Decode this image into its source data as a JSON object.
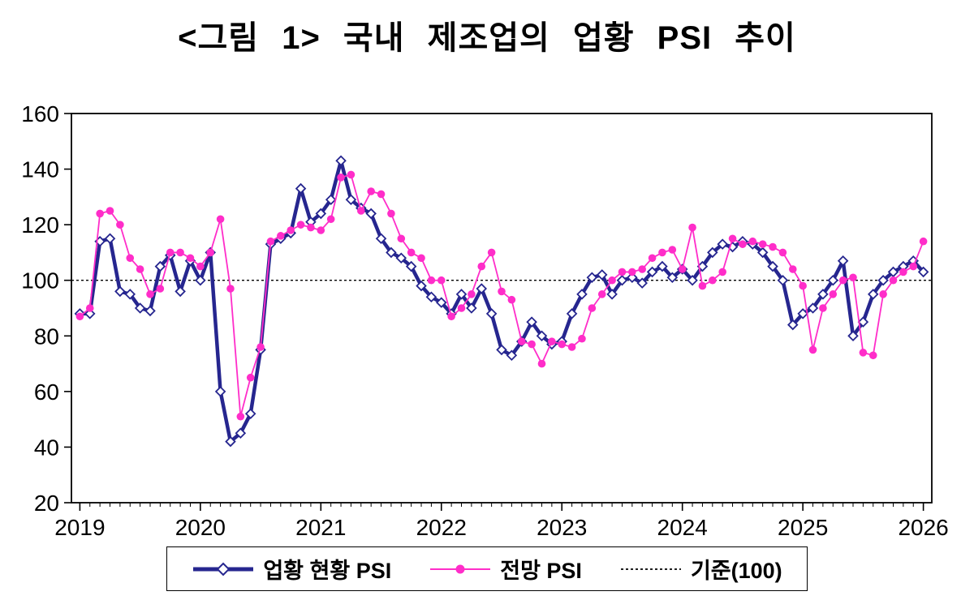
{
  "title": "<그림 1> 국내 제조업의 업황 PSI 추이",
  "chart_data": {
    "type": "line",
    "title": "<그림 1> 국내 제조업의 업황 PSI 추이",
    "frequency": "monthly",
    "x_start_label": "2019-01",
    "x_tick_labels": [
      "2019",
      "2020",
      "2021",
      "2022",
      "2023",
      "2024",
      "2025",
      "2026"
    ],
    "y_ticks": [
      20,
      40,
      60,
      80,
      100,
      120,
      140,
      160
    ],
    "ylim": [
      20,
      160
    ],
    "xlim": [
      2018.93,
      2026.07
    ],
    "grid": false,
    "legend_position": "bottom",
    "reference_line": {
      "value": 100,
      "label": "기준(100)",
      "color": "#000000",
      "dash": "3 3"
    },
    "series": [
      {
        "name": "업황 현황 PSI",
        "color": "#26268F",
        "marker": "open-diamond",
        "marker_fill": "#FFFFFF",
        "line_width": 4.5,
        "values": [
          88,
          88,
          114,
          115,
          96,
          95,
          90,
          89,
          105,
          109,
          96,
          107,
          100,
          110,
          60,
          42,
          45,
          52,
          75,
          113,
          115,
          117,
          133,
          121,
          124,
          129,
          143,
          129,
          126,
          124,
          115,
          110,
          108,
          105,
          98,
          94,
          92,
          88,
          95,
          90,
          97,
          88,
          75,
          73,
          78,
          85,
          80,
          77,
          78,
          88,
          95,
          101,
          102,
          95,
          100,
          101,
          99,
          103,
          105,
          101,
          104,
          100,
          105,
          110,
          113,
          112,
          114,
          113,
          110,
          105,
          100,
          84,
          88,
          90,
          95,
          100,
          107,
          80,
          85,
          95,
          100,
          103,
          105,
          107,
          103
        ]
      },
      {
        "name": "전망 PSI",
        "color": "#FF2DC9",
        "marker": "filled-circle",
        "line_width": 1.8,
        "values": [
          87,
          90,
          124,
          125,
          120,
          108,
          104,
          95,
          97,
          110,
          110,
          108,
          105,
          110,
          122,
          97,
          51,
          65,
          76,
          114,
          116,
          118,
          120,
          119,
          118,
          122,
          137,
          138,
          125,
          132,
          131,
          124,
          115,
          110,
          108,
          100,
          100,
          87,
          90,
          95,
          105,
          110,
          96,
          93,
          78,
          77,
          70,
          78,
          77,
          76,
          79,
          90,
          95,
          100,
          103,
          103,
          104,
          108,
          110,
          111,
          104,
          119,
          98,
          100,
          103,
          115,
          113,
          114,
          113,
          112,
          110,
          104,
          98,
          75,
          90,
          95,
          100,
          101,
          74,
          73,
          95,
          100,
          103,
          105,
          114
        ]
      }
    ]
  },
  "legend": {
    "items": [
      {
        "label": "업황 현황 PSI"
      },
      {
        "label": "전망 PSI"
      },
      {
        "label": "기준(100)"
      }
    ]
  }
}
